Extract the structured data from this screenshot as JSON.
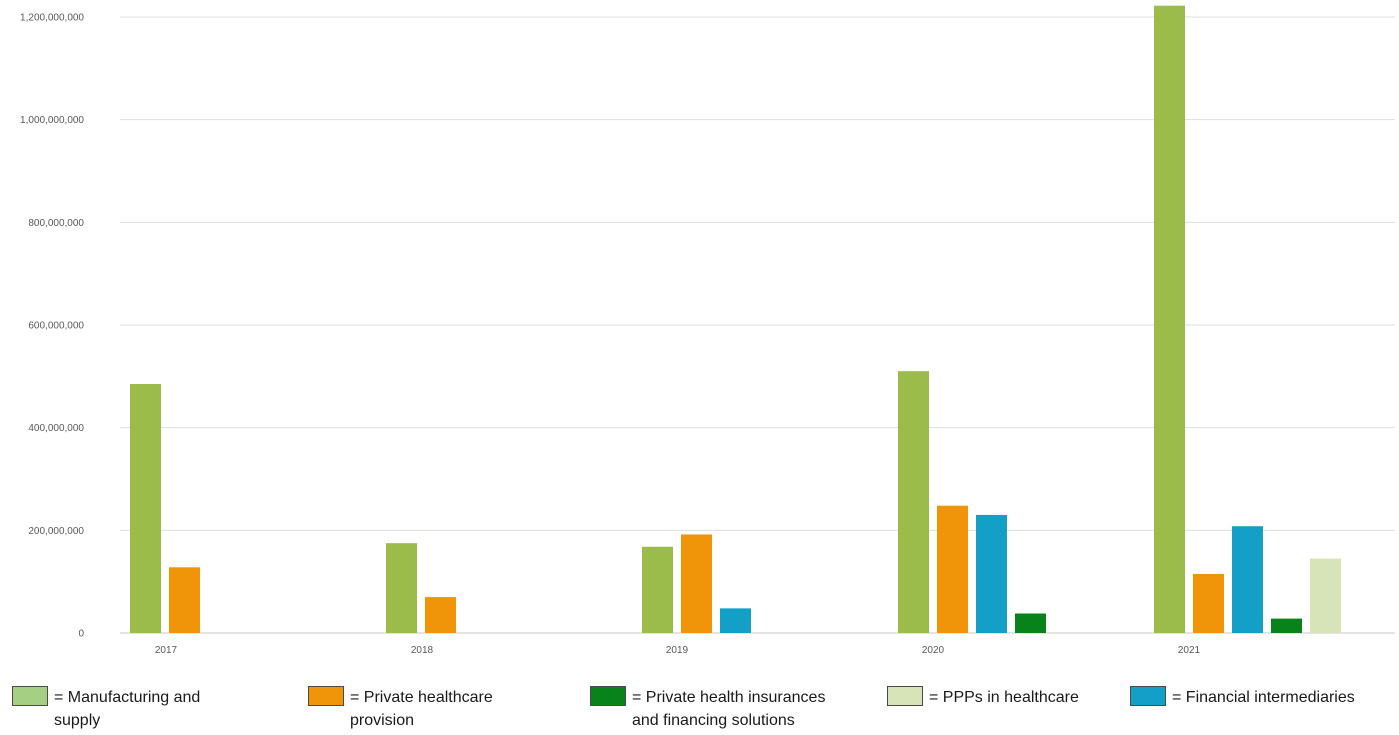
{
  "chart_data": {
    "type": "bar",
    "categories": [
      "2017",
      "2018",
      "2019",
      "2020",
      "2021"
    ],
    "ylim": [
      0,
      1200000000
    ],
    "yticks": [
      "0",
      "200,000,000",
      "400,000,000",
      "600,000,000",
      "800,000,000",
      "1,000,000,000",
      "1,200,000,000"
    ],
    "grid": true,
    "legend_position": "bottom",
    "series": [
      {
        "key": "manufacturing",
        "color": "#9bbb4a",
        "values": [
          485000000,
          175000000,
          168000000,
          510000000,
          1222000000
        ]
      },
      {
        "key": "private_healthcare",
        "color": "#f0950a",
        "values": [
          128000000,
          70000000,
          192000000,
          248000000,
          115000000
        ]
      },
      {
        "key": "financial_intermediaries",
        "color": "#129fc8",
        "values": [
          null,
          null,
          48000000,
          230000000,
          208000000
        ]
      },
      {
        "key": "private_insurance",
        "color": "#078319",
        "values": [
          null,
          null,
          null,
          38000000,
          28000000
        ]
      },
      {
        "key": "ppps",
        "color": "#d6e4b7",
        "values": [
          null,
          null,
          null,
          null,
          145000000
        ]
      }
    ],
    "legend": [
      {
        "label": "= Manufacturing and\nsupply",
        "color": "#a5cf82"
      },
      {
        "label": "= Private healthcare\nprovision",
        "color": "#f0950a"
      },
      {
        "label": "= Private health insurances\nand financing solutions",
        "color": "#078319"
      },
      {
        "label": "= PPPs in healthcare",
        "color": "#d6e4b7"
      },
      {
        "label": "= Financial intermediaries",
        "color": "#129fc8"
      }
    ]
  }
}
